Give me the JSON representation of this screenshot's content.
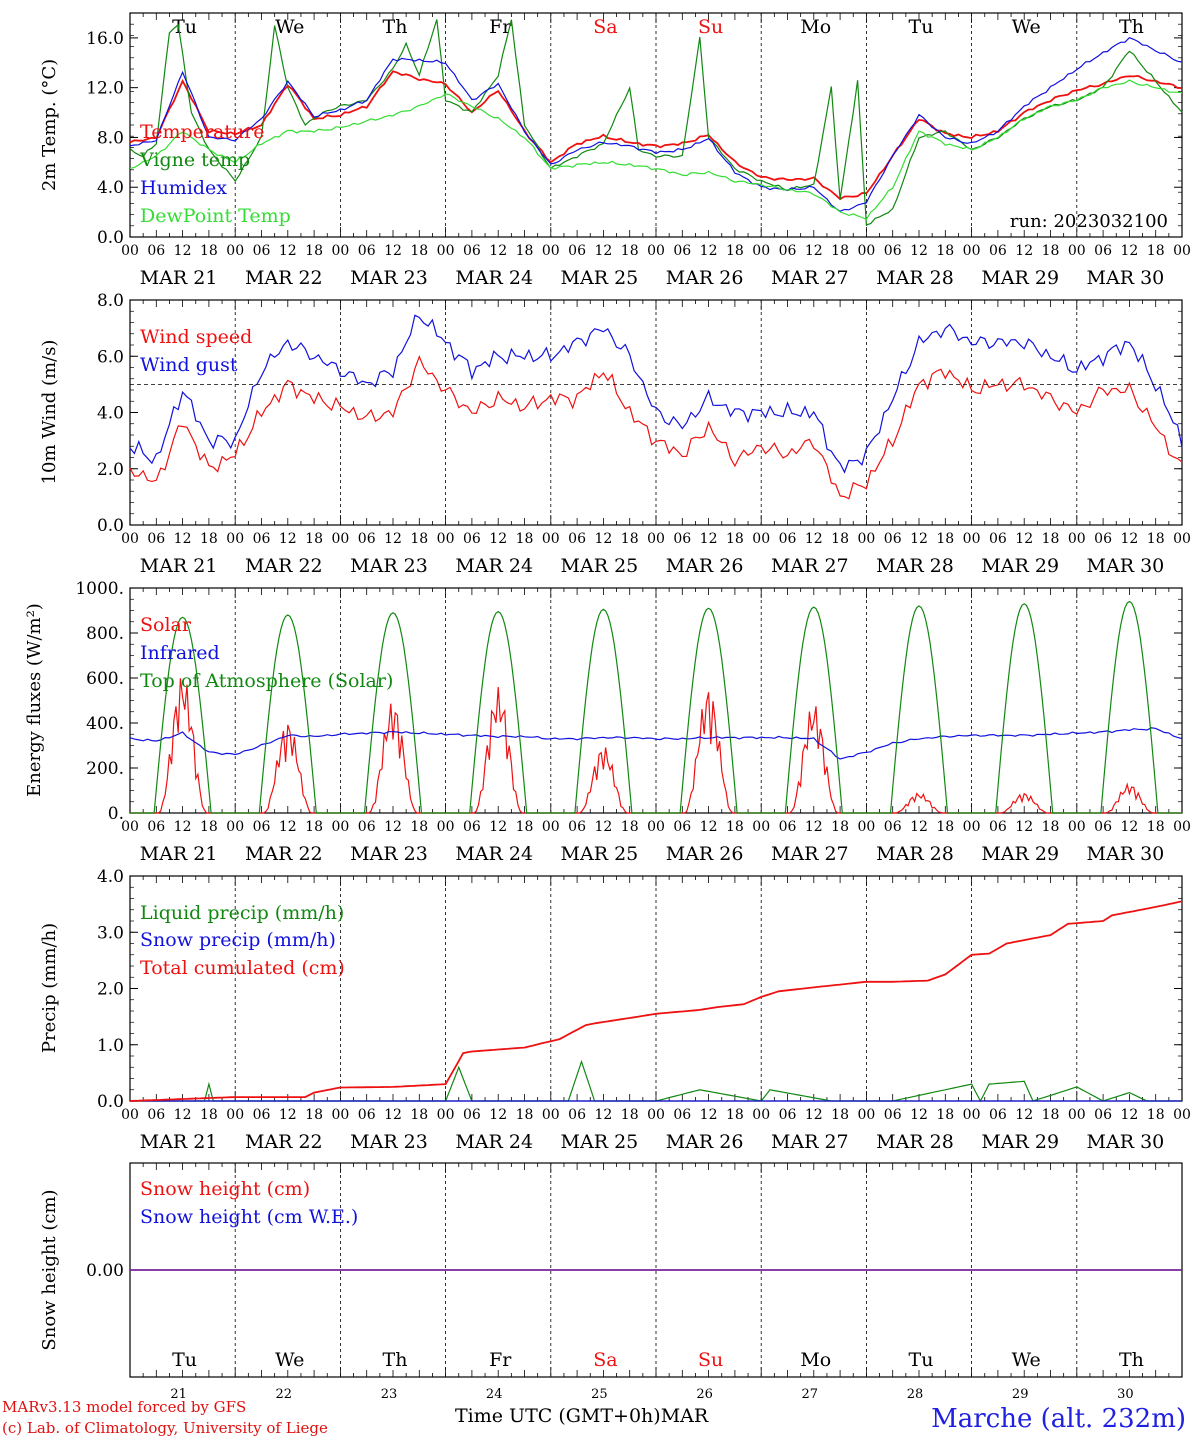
{
  "colors": {
    "red": "#ee1111",
    "green": "#118811",
    "blue": "#1111dd",
    "lightgreen": "#33dd33",
    "purple": "#772299",
    "black": "#000000"
  },
  "days": {
    "labels": [
      "Tu",
      "We",
      "Th",
      "Fr",
      "Sa",
      "Su",
      "Mo",
      "Tu",
      "We",
      "Th"
    ],
    "weekend_index": [
      4,
      5
    ],
    "dates": [
      "MAR 21",
      "MAR 22",
      "MAR 23",
      "MAR 24",
      "MAR 25",
      "MAR 26",
      "MAR 27",
      "MAR 28",
      "MAR 29",
      "MAR 30"
    ],
    "numbers": [
      "21",
      "22",
      "23",
      "24",
      "25",
      "26",
      "27",
      "28",
      "29",
      "30"
    ],
    "hour_ticks": [
      "00",
      "06",
      "12",
      "18"
    ],
    "end_tick": "00"
  },
  "footer": {
    "credit_line1": "MARv3.13 model forced by GFS",
    "credit_line2": "(c) Lab. of Climatology, University of Liege",
    "xaxis_title": "Time UTC (GMT+0h)",
    "month": "MAR",
    "station": "Marche (alt. 232m)"
  },
  "chart_data": [
    {
      "type": "line",
      "ylabel": "2m Temp. (°C)",
      "ylim": [
        0,
        18
      ],
      "yticks": [
        "0.0",
        "4.0",
        "8.0",
        "12.0",
        "16.0"
      ],
      "annotation": "run: 2023032100",
      "x_unit": "hours since MAR 21 00 UTC",
      "series": [
        {
          "name": "Temperature",
          "color": "red",
          "x": [
            0,
            6,
            12,
            18,
            24,
            30,
            36,
            42,
            48,
            54,
            60,
            66,
            72,
            78,
            84,
            90,
            96,
            102,
            108,
            114,
            120,
            126,
            132,
            138,
            144,
            150,
            156,
            162,
            168,
            174,
            180,
            186,
            192,
            198,
            204,
            210,
            216,
            222,
            228,
            234,
            240
          ],
          "values": [
            7.6,
            8.0,
            12.5,
            8.5,
            8.3,
            9.0,
            12.3,
            9.5,
            9.8,
            10.5,
            13.3,
            12.7,
            12.3,
            10.0,
            11.8,
            8.5,
            6.0,
            7.5,
            8.1,
            7.6,
            7.3,
            7.5,
            8.2,
            6.0,
            4.8,
            4.6,
            4.7,
            3.1,
            3.5,
            6.5,
            9.5,
            8.3,
            8.0,
            8.5,
            10.0,
            11.0,
            11.8,
            12.3,
            13.0,
            12.5,
            12.0
          ]
        },
        {
          "name": "Vigne temp",
          "color": "green",
          "x": [
            0,
            3,
            6,
            9,
            11,
            14,
            18,
            24,
            30,
            33,
            36,
            40,
            44,
            48,
            54,
            60,
            63,
            66,
            70,
            72,
            78,
            84,
            87,
            90,
            96,
            102,
            108,
            114,
            116,
            120,
            126,
            130,
            132,
            138,
            144,
            150,
            156,
            160,
            162,
            166,
            168,
            174,
            180,
            186,
            192,
            198,
            204,
            210,
            216,
            222,
            228,
            234,
            240
          ],
          "values": [
            7.0,
            6.5,
            7.5,
            16.5,
            17.0,
            10.0,
            7.0,
            4.5,
            8.0,
            17.0,
            12.0,
            9.0,
            10.0,
            10.5,
            11.0,
            13.5,
            15.5,
            13.0,
            17.5,
            11.0,
            10.0,
            13.0,
            17.5,
            9.0,
            5.5,
            6.5,
            7.5,
            12.0,
            7.0,
            6.5,
            6.5,
            16.0,
            8.0,
            5.5,
            4.5,
            3.8,
            4.2,
            12.0,
            3.0,
            12.5,
            1.0,
            2.2,
            8.0,
            8.5,
            7.0,
            8.0,
            9.5,
            10.5,
            11.0,
            12.0,
            15.0,
            12.5,
            10.0
          ]
        },
        {
          "name": "Humidex",
          "color": "blue",
          "x": [
            0,
            6,
            12,
            18,
            24,
            30,
            36,
            42,
            48,
            54,
            60,
            66,
            72,
            78,
            84,
            90,
            96,
            102,
            108,
            114,
            120,
            126,
            132,
            138,
            144,
            150,
            156,
            162,
            168,
            174,
            180,
            186,
            192,
            198,
            204,
            210,
            216,
            222,
            228,
            234,
            240
          ],
          "values": [
            7.3,
            7.8,
            13.3,
            8.0,
            7.8,
            9.5,
            12.5,
            9.7,
            10.2,
            11.0,
            14.3,
            14.2,
            14.0,
            11.0,
            12.3,
            8.5,
            5.8,
            7.0,
            7.6,
            7.3,
            6.8,
            7.0,
            7.9,
            5.2,
            4.0,
            3.8,
            4.0,
            2.0,
            2.8,
            6.5,
            9.8,
            8.0,
            7.5,
            8.5,
            10.5,
            12.0,
            13.5,
            14.8,
            16.0,
            15.0,
            14.0
          ]
        },
        {
          "name": "DewPoint Temp",
          "color": "lightgreen",
          "x": [
            0,
            6,
            12,
            18,
            24,
            30,
            36,
            42,
            48,
            54,
            60,
            66,
            72,
            78,
            84,
            90,
            96,
            102,
            108,
            114,
            120,
            126,
            132,
            138,
            144,
            150,
            156,
            162,
            168,
            174,
            180,
            186,
            192,
            198,
            204,
            210,
            216,
            222,
            228,
            234,
            240
          ],
          "values": [
            5.5,
            6.5,
            8.5,
            7.0,
            6.0,
            7.5,
            8.5,
            8.5,
            8.8,
            9.3,
            9.8,
            10.5,
            11.5,
            10.5,
            9.5,
            8.0,
            5.5,
            5.8,
            6.0,
            5.8,
            5.5,
            5.0,
            5.2,
            4.5,
            4.2,
            3.8,
            3.5,
            2.0,
            1.5,
            4.0,
            8.5,
            7.5,
            7.0,
            8.0,
            9.5,
            10.5,
            11.0,
            12.0,
            12.5,
            12.0,
            11.5
          ]
        }
      ]
    },
    {
      "type": "line",
      "ylabel": "10m Wind (m/s)",
      "ylim": [
        0,
        8
      ],
      "yticks": [
        "0.0",
        "2.0",
        "4.0",
        "6.0",
        "8.0"
      ],
      "reference_line": 5.0,
      "x_unit": "hours since MAR 21 00 UTC",
      "series": [
        {
          "name": "Wind speed",
          "color": "red",
          "x": [
            0,
            6,
            12,
            18,
            24,
            30,
            36,
            42,
            48,
            54,
            60,
            66,
            72,
            78,
            84,
            90,
            96,
            102,
            108,
            114,
            120,
            126,
            132,
            138,
            144,
            150,
            156,
            162,
            168,
            174,
            180,
            186,
            192,
            198,
            204,
            210,
            216,
            222,
            228,
            234,
            240
          ],
          "values": [
            2.0,
            1.5,
            3.7,
            2.0,
            2.5,
            4.0,
            5.0,
            4.5,
            4.2,
            3.8,
            4.0,
            5.8,
            4.8,
            4.0,
            4.5,
            4.2,
            4.5,
            4.5,
            5.5,
            4.0,
            3.0,
            2.5,
            3.5,
            2.3,
            2.8,
            2.5,
            3.0,
            1.0,
            1.5,
            3.0,
            5.0,
            5.5,
            4.8,
            5.0,
            5.0,
            4.5,
            4.0,
            4.8,
            4.8,
            3.5,
            2.0
          ]
        },
        {
          "name": "Wind gust",
          "color": "blue",
          "x": [
            0,
            6,
            12,
            18,
            24,
            30,
            36,
            42,
            48,
            54,
            60,
            66,
            72,
            78,
            84,
            90,
            96,
            102,
            108,
            114,
            120,
            126,
            132,
            138,
            144,
            150,
            156,
            162,
            168,
            174,
            180,
            186,
            192,
            198,
            204,
            210,
            216,
            222,
            228,
            234,
            240
          ],
          "values": [
            2.8,
            2.3,
            4.8,
            3.0,
            3.0,
            5.5,
            6.5,
            6.0,
            5.5,
            5.0,
            5.5,
            7.5,
            6.5,
            5.5,
            6.0,
            6.0,
            6.0,
            6.5,
            7.0,
            6.0,
            4.0,
            3.5,
            4.5,
            4.0,
            4.0,
            4.0,
            4.0,
            2.0,
            2.5,
            4.5,
            6.5,
            7.0,
            6.5,
            6.5,
            6.5,
            6.0,
            5.5,
            6.0,
            6.5,
            5.0,
            3.0
          ]
        }
      ]
    },
    {
      "type": "line",
      "ylabel": "Energy fluxes (W/m²)",
      "ylim": [
        0,
        1000
      ],
      "yticks": [
        "0.",
        "200.",
        "400.",
        "600.",
        "800.",
        "1000."
      ],
      "x_unit": "hours since MAR 21 00 UTC",
      "series": [
        {
          "name": "Solar",
          "color": "red",
          "daily_peaks": [
            620,
            410,
            500,
            560,
            300,
            560,
            490,
            90,
            90,
            130
          ]
        },
        {
          "name": "Infrared",
          "color": "blue",
          "x": [
            0,
            6,
            12,
            18,
            24,
            30,
            36,
            42,
            48,
            54,
            60,
            66,
            72,
            78,
            84,
            90,
            96,
            102,
            108,
            114,
            120,
            126,
            132,
            138,
            144,
            150,
            156,
            162,
            168,
            174,
            180,
            186,
            192,
            198,
            204,
            210,
            216,
            222,
            228,
            234,
            240
          ],
          "values": [
            330,
            320,
            355,
            270,
            260,
            300,
            345,
            340,
            350,
            355,
            360,
            355,
            350,
            345,
            340,
            340,
            330,
            330,
            335,
            335,
            330,
            330,
            335,
            335,
            335,
            335,
            330,
            240,
            270,
            310,
            330,
            340,
            345,
            345,
            345,
            350,
            355,
            360,
            370,
            375,
            330
          ]
        },
        {
          "name": "Top of Atmosphere (Solar)",
          "color": "green",
          "daily_peaks": [
            870,
            880,
            890,
            895,
            905,
            910,
            915,
            920,
            930,
            940
          ]
        }
      ]
    },
    {
      "type": "line",
      "ylabel": "Precip (mm/h)",
      "ylim": [
        0,
        4
      ],
      "yticks": [
        "0.0",
        "1.0",
        "2.0",
        "3.0",
        "4.0"
      ],
      "x_unit": "hours since MAR 21 00 UTC",
      "series": [
        {
          "name": "Liquid precip (mm/h)",
          "color": "green",
          "x": [
            0,
            17,
            18,
            19,
            40,
            66,
            72,
            75,
            78,
            100,
            103,
            106,
            120,
            130,
            144,
            146,
            160,
            174,
            192,
            194,
            196,
            204,
            206,
            216,
            222,
            228,
            232,
            240
          ],
          "values": [
            0,
            0,
            0.3,
            0,
            0,
            0,
            0,
            0.6,
            0,
            0,
            0.7,
            0,
            0,
            0.2,
            0,
            0.2,
            0,
            0,
            0.3,
            0,
            0.3,
            0.35,
            0,
            0.25,
            0,
            0.15,
            0,
            0
          ]
        },
        {
          "name": "Snow precip (mm/h)",
          "color": "blue",
          "x": [
            0,
            240
          ],
          "values": [
            0,
            0
          ]
        },
        {
          "name": "Total cumulated (cm)",
          "color": "red",
          "x": [
            0,
            24,
            40,
            42,
            48,
            60,
            72,
            76,
            78,
            90,
            98,
            104,
            106,
            116,
            120,
            130,
            134,
            140,
            144,
            148,
            156,
            168,
            174,
            182,
            186,
            192,
            196,
            200,
            210,
            214,
            222,
            224,
            234,
            240
          ],
          "values": [
            0,
            0.07,
            0.07,
            0.15,
            0.24,
            0.25,
            0.3,
            0.85,
            0.88,
            0.95,
            1.1,
            1.35,
            1.38,
            1.5,
            1.55,
            1.62,
            1.67,
            1.72,
            1.85,
            1.95,
            2.02,
            2.12,
            2.12,
            2.14,
            2.25,
            2.6,
            2.62,
            2.8,
            2.95,
            3.15,
            3.2,
            3.3,
            3.45,
            3.55
          ]
        }
      ]
    },
    {
      "type": "line",
      "ylabel": "Snow height (cm)",
      "yticks": [
        "0.00"
      ],
      "x_unit": "hours since MAR 21 00 UTC",
      "series": [
        {
          "name": "Snow height (cm)",
          "color": "red",
          "x": [
            0,
            240
          ],
          "values": [
            0,
            0
          ]
        },
        {
          "name": "Snow height (cm W.E.)",
          "color": "blue",
          "x": [
            0,
            240
          ],
          "values": [
            0,
            0
          ]
        }
      ]
    }
  ]
}
